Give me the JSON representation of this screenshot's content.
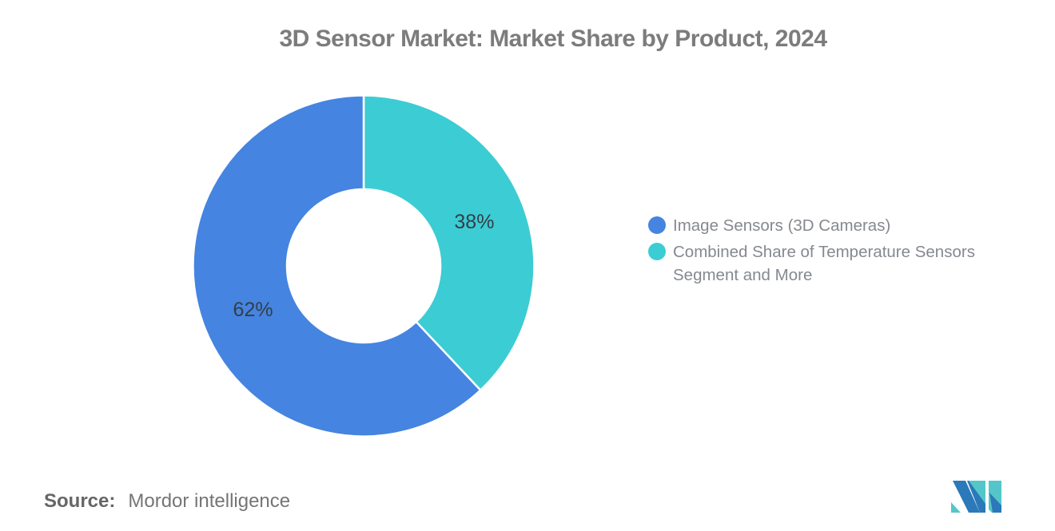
{
  "title": "3D Sensor Market: Market Share by Product, 2024",
  "chart_data": {
    "type": "pie",
    "subtype": "donut",
    "title": "3D Sensor Market: Market Share by Product, 2024",
    "values_unit": "%",
    "inner_radius_ratio": 0.45,
    "direction": "clockwise",
    "start_angle": "12 o'clock",
    "legend_position": "right",
    "segments_clockwise_from_top": [
      {
        "name": "Combined Share of Temperature Sensors Segment and More",
        "value": 38,
        "data_label": "38%",
        "color": "#3cccd4"
      },
      {
        "name": "Image Sensors (3D Cameras)",
        "value": 62,
        "data_label": "62%",
        "color": "#4584e0"
      }
    ]
  },
  "legend": {
    "items": [
      {
        "label": "Image Sensors (3D Cameras)",
        "color": "#4584e0"
      },
      {
        "label": "Combined Share of Temperature Sensors Segment and More",
        "color": "#3cccd4"
      }
    ]
  },
  "source": {
    "prefix": "Source:",
    "text": "Mordor intelligence"
  },
  "logo": {
    "icon": "mordor-intelligence-logo",
    "colors": {
      "blue": "#2b79b9",
      "teal": "#54c6c9"
    }
  },
  "colors": {
    "background": "#ffffff",
    "title_text": "#7c7c7c",
    "legend_text": "#85898f",
    "slice_label_text": "#333e48",
    "source_text": "#757575"
  }
}
